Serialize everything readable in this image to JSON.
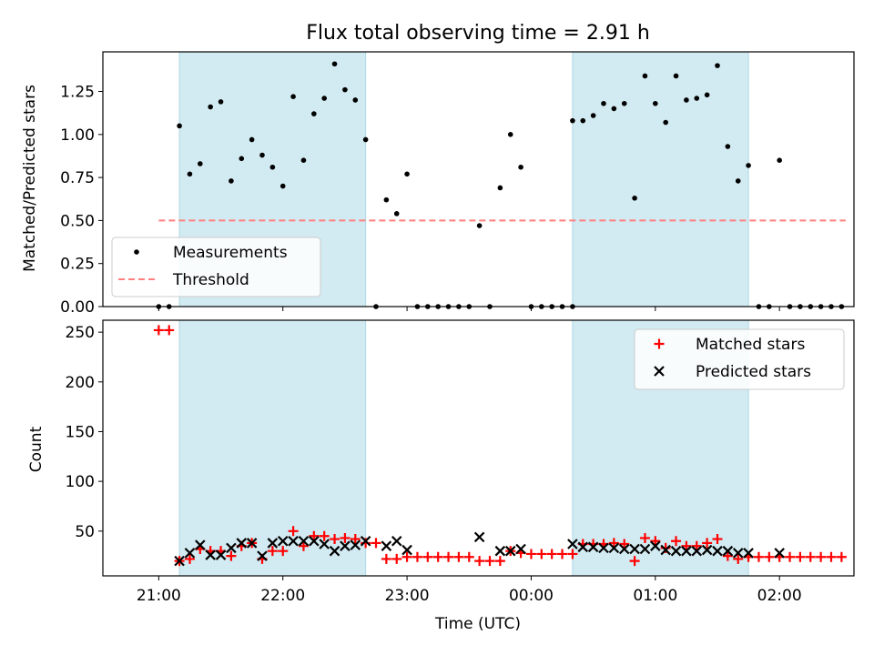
{
  "chart_data": [
    {
      "type": "scatter",
      "panel": "top",
      "title": "Flux total observing time = 2.91 h",
      "xlabel": "",
      "ylabel": "Matched/Predicted stars",
      "x_unit": "minutes relative to 21:00 UTC",
      "xlim": [
        -27,
        336
      ],
      "ylim": [
        0,
        1.48
      ],
      "y_ticks": [
        0.0,
        0.25,
        0.5,
        0.75,
        1.0,
        1.25
      ],
      "y_tick_labels": [
        "0.00",
        "0.25",
        "0.50",
        "0.75",
        "1.00",
        "1.25"
      ],
      "shaded_spans": [
        [
          10,
          100
        ],
        [
          200,
          285
        ]
      ],
      "shade_color": "#add8e6",
      "legend": {
        "placement": "lower-left",
        "entries": [
          "Measurements",
          "Threshold"
        ]
      },
      "series": [
        {
          "name": "Measurements",
          "color": "#000000",
          "marker": "dot",
          "points": [
            [
              0,
              0
            ],
            [
              5,
              0
            ],
            [
              10,
              1.05
            ],
            [
              15,
              0.77
            ],
            [
              20,
              0.83
            ],
            [
              25,
              1.16
            ],
            [
              30,
              1.19
            ],
            [
              35,
              0.73
            ],
            [
              40,
              0.86
            ],
            [
              45,
              0.97
            ],
            [
              50,
              0.88
            ],
            [
              55,
              0.81
            ],
            [
              60,
              0.7
            ],
            [
              65,
              1.22
            ],
            [
              70,
              0.85
            ],
            [
              75,
              1.12
            ],
            [
              80,
              1.21
            ],
            [
              85,
              1.41
            ],
            [
              90,
              1.26
            ],
            [
              95,
              1.2
            ],
            [
              100,
              0.97
            ],
            [
              105,
              0
            ],
            [
              110,
              0.62
            ],
            [
              115,
              0.54
            ],
            [
              120,
              0.77
            ],
            [
              125,
              0
            ],
            [
              130,
              0
            ],
            [
              135,
              0
            ],
            [
              140,
              0
            ],
            [
              145,
              0
            ],
            [
              150,
              0
            ],
            [
              155,
              0.47
            ],
            [
              160,
              0
            ],
            [
              165,
              0.69
            ],
            [
              170,
              1.0
            ],
            [
              175,
              0.81
            ],
            [
              180,
              0
            ],
            [
              185,
              0
            ],
            [
              190,
              0
            ],
            [
              195,
              0
            ],
            [
              200,
              0
            ],
            [
              200,
              1.08
            ],
            [
              205,
              1.08
            ],
            [
              210,
              1.11
            ],
            [
              215,
              1.18
            ],
            [
              220,
              1.15
            ],
            [
              225,
              1.18
            ],
            [
              230,
              0.63
            ],
            [
              235,
              1.34
            ],
            [
              240,
              1.18
            ],
            [
              245,
              1.07
            ],
            [
              250,
              1.34
            ],
            [
              255,
              1.2
            ],
            [
              260,
              1.21
            ],
            [
              265,
              1.23
            ],
            [
              270,
              1.4
            ],
            [
              275,
              0.93
            ],
            [
              280,
              0.73
            ],
            [
              285,
              0.82
            ],
            [
              290,
              0
            ],
            [
              295,
              0
            ],
            [
              300,
              0.85
            ],
            [
              305,
              0
            ],
            [
              310,
              0
            ],
            [
              315,
              0
            ],
            [
              320,
              0
            ],
            [
              325,
              0
            ],
            [
              330,
              0
            ]
          ]
        },
        {
          "name": "Threshold",
          "color": "#ff7f7f",
          "line": "dashed",
          "points": [
            [
              0,
              0.5
            ],
            [
              332,
              0.5
            ]
          ]
        }
      ]
    },
    {
      "type": "scatter",
      "panel": "bottom",
      "title": "",
      "xlabel": "Time (UTC)",
      "ylabel": "Count",
      "x_unit": "minutes relative to 21:00 UTC",
      "xlim": [
        -27,
        336
      ],
      "ylim": [
        5,
        262
      ],
      "x_ticks": [
        0,
        60,
        120,
        180,
        240,
        300
      ],
      "x_tick_labels": [
        "21:00",
        "22:00",
        "23:00",
        "00:00",
        "01:00",
        "02:00"
      ],
      "y_ticks": [
        50,
        100,
        150,
        200,
        250
      ],
      "y_tick_labels": [
        "50",
        "100",
        "150",
        "200",
        "250"
      ],
      "shaded_spans": [
        [
          10,
          100
        ],
        [
          200,
          285
        ]
      ],
      "shade_color": "#add8e6",
      "legend": {
        "placement": "upper-right",
        "entries": [
          "Matched stars",
          "Predicted stars"
        ]
      },
      "series": [
        {
          "name": "Matched stars",
          "color": "#ff0000",
          "marker": "plus",
          "points": [
            [
              0,
              252
            ],
            [
              5,
              252
            ],
            [
              10,
              20
            ],
            [
              15,
              22
            ],
            [
              20,
              32
            ],
            [
              25,
              30
            ],
            [
              30,
              30
            ],
            [
              35,
              25
            ],
            [
              40,
              35
            ],
            [
              45,
              38
            ],
            [
              50,
              22
            ],
            [
              55,
              30
            ],
            [
              60,
              30
            ],
            [
              65,
              50
            ],
            [
              70,
              35
            ],
            [
              75,
              45
            ],
            [
              80,
              45
            ],
            [
              85,
              42
            ],
            [
              90,
              43
            ],
            [
              95,
              42
            ],
            [
              100,
              38
            ],
            [
              105,
              38
            ],
            [
              110,
              22
            ],
            [
              115,
              22
            ],
            [
              120,
              24
            ],
            [
              125,
              24
            ],
            [
              130,
              24
            ],
            [
              135,
              24
            ],
            [
              140,
              24
            ],
            [
              145,
              24
            ],
            [
              150,
              24
            ],
            [
              155,
              20
            ],
            [
              160,
              20
            ],
            [
              165,
              20
            ],
            [
              170,
              30
            ],
            [
              175,
              28
            ],
            [
              180,
              27
            ],
            [
              185,
              27
            ],
            [
              190,
              27
            ],
            [
              195,
              27
            ],
            [
              200,
              27
            ],
            [
              205,
              37
            ],
            [
              210,
              37
            ],
            [
              215,
              37
            ],
            [
              220,
              38
            ],
            [
              225,
              37
            ],
            [
              230,
              20
            ],
            [
              235,
              43
            ],
            [
              240,
              40
            ],
            [
              245,
              33
            ],
            [
              250,
              40
            ],
            [
              255,
              35
            ],
            [
              260,
              35
            ],
            [
              265,
              38
            ],
            [
              270,
              42
            ],
            [
              275,
              25
            ],
            [
              280,
              22
            ],
            [
              285,
              24
            ],
            [
              290,
              24
            ],
            [
              295,
              24
            ],
            [
              300,
              24
            ],
            [
              305,
              24
            ],
            [
              310,
              24
            ],
            [
              315,
              24
            ],
            [
              320,
              24
            ],
            [
              325,
              24
            ],
            [
              330,
              24
            ]
          ]
        },
        {
          "name": "Predicted stars",
          "color": "#000000",
          "marker": "x",
          "points": [
            [
              10,
              20
            ],
            [
              15,
              28
            ],
            [
              20,
              36
            ],
            [
              25,
              26
            ],
            [
              30,
              26
            ],
            [
              35,
              33
            ],
            [
              40,
              38
            ],
            [
              45,
              38
            ],
            [
              50,
              25
            ],
            [
              55,
              38
            ],
            [
              60,
              40
            ],
            [
              65,
              40
            ],
            [
              70,
              40
            ],
            [
              75,
              40
            ],
            [
              80,
              37
            ],
            [
              85,
              30
            ],
            [
              90,
              35
            ],
            [
              95,
              36
            ],
            [
              100,
              40
            ],
            [
              110,
              35
            ],
            [
              115,
              40
            ],
            [
              120,
              31
            ],
            [
              155,
              44
            ],
            [
              165,
              30
            ],
            [
              170,
              30
            ],
            [
              175,
              32
            ],
            [
              200,
              37
            ],
            [
              205,
              34
            ],
            [
              210,
              34
            ],
            [
              215,
              33
            ],
            [
              220,
              33
            ],
            [
              225,
              32
            ],
            [
              230,
              32
            ],
            [
              235,
              32
            ],
            [
              240,
              35
            ],
            [
              245,
              31
            ],
            [
              250,
              30
            ],
            [
              255,
              30
            ],
            [
              260,
              30
            ],
            [
              265,
              31
            ],
            [
              270,
              30
            ],
            [
              275,
              30
            ],
            [
              280,
              28
            ],
            [
              285,
              28
            ],
            [
              300,
              28
            ]
          ]
        }
      ]
    }
  ]
}
